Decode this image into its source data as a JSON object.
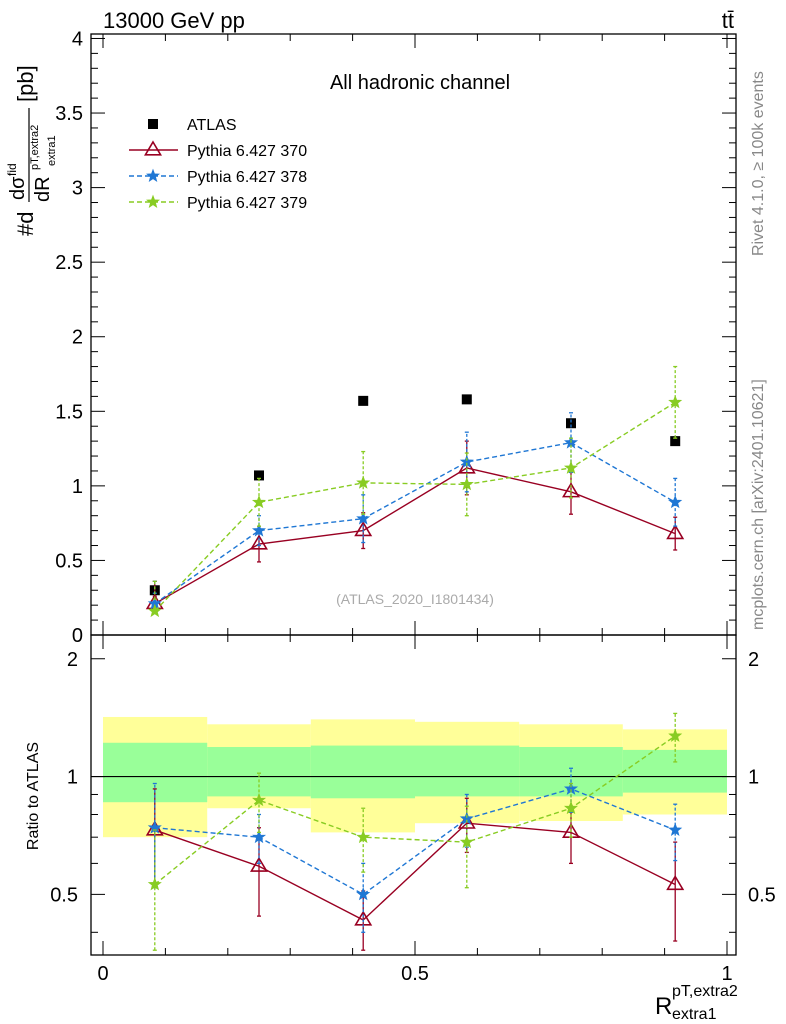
{
  "header": {
    "left_label": "13000 GeV pp",
    "right_label": "tt̄"
  },
  "side_labels": {
    "rivet": "Rivet 4.1.0, ≥ 100k events",
    "mcplots": "mcplots.cern.ch [arXiv:2401.10621]"
  },
  "chart_data": [
    {
      "type": "scatter",
      "panel": "main",
      "title": "All hadronic channel",
      "analysis_label": "(ATLAS_2020_I1801434)",
      "ylabel": "#d dσ^fid / dR^pT,extra2_extra1 [pb]",
      "ylabel_parts": {
        "prefix": "#d",
        "num": "dσ",
        "num_sup": "fid",
        "den": "dR",
        "den_sup": "pT,extra2",
        "den_sub": "extra1",
        "unit": "[pb]"
      },
      "xlim": [
        0,
        1
      ],
      "ylim": [
        0,
        4.03
      ],
      "x_ticks": [
        "0",
        "0.5",
        "1"
      ],
      "y_ticks": [
        "0",
        "0.5",
        "1",
        "1.5",
        "2",
        "2.5",
        "3",
        "3.5",
        "4"
      ],
      "legend_position": "top-left",
      "series": [
        {
          "name": "ATLAS",
          "color": "#000000",
          "marker": "square",
          "line": "none",
          "x": [
            0.083,
            0.25,
            0.417,
            0.583,
            0.75,
            0.917
          ],
          "y": [
            0.3,
            1.07,
            1.57,
            1.58,
            1.42,
            1.3
          ],
          "err": [
            0.0,
            0.0,
            0.0,
            0.0,
            0.0,
            0.0
          ]
        },
        {
          "name": "Pythia 6.427 370",
          "color": "#990022",
          "marker": "open-triangle",
          "line": "solid",
          "x": [
            0.083,
            0.25,
            0.417,
            0.583,
            0.75,
            0.917
          ],
          "y": [
            0.21,
            0.61,
            0.7,
            1.12,
            0.96,
            0.68
          ],
          "err": [
            0.05,
            0.12,
            0.12,
            0.18,
            0.15,
            0.11
          ]
        },
        {
          "name": "Pythia 6.427 378",
          "color": "#1f77d4",
          "marker": "star",
          "line": "dashed",
          "x": [
            0.083,
            0.25,
            0.417,
            0.583,
            0.75,
            0.917
          ],
          "y": [
            0.21,
            0.7,
            0.78,
            1.16,
            1.29,
            0.89
          ],
          "err": [
            0.07,
            0.1,
            0.16,
            0.2,
            0.2,
            0.16
          ]
        },
        {
          "name": "Pythia 6.427 379",
          "color": "#88cc22",
          "marker": "star",
          "line": "dashed",
          "x": [
            0.083,
            0.25,
            0.417,
            0.583,
            0.75,
            0.917
          ],
          "y": [
            0.16,
            0.89,
            1.02,
            1.01,
            1.12,
            1.56
          ],
          "err": [
            0.08,
            0.16,
            0.21,
            0.21,
            0.2,
            0.24
          ]
        }
      ]
    },
    {
      "type": "scatter",
      "panel": "ratio",
      "ylabel": "Ratio to ATLAS",
      "xlabel": "R",
      "xlabel_sup": "pT,extra2",
      "xlabel_sub": "extra1",
      "xlim": [
        0,
        1
      ],
      "ylim": [
        0.35,
        2.3
      ],
      "x_ticks": [
        "0",
        "0.5",
        "1"
      ],
      "y_ticks": [
        "0.5",
        "1",
        "2"
      ],
      "bin_edges": [
        0,
        0.167,
        0.333,
        0.5,
        0.667,
        0.833,
        1.0
      ],
      "bands": {
        "outer_color": "#ffff99",
        "inner_color": "#99ff99",
        "outer": [
          [
            0.7,
            1.42
          ],
          [
            0.83,
            1.36
          ],
          [
            0.72,
            1.4
          ],
          [
            0.76,
            1.38
          ],
          [
            0.77,
            1.36
          ],
          [
            0.8,
            1.32
          ]
        ],
        "inner": [
          [
            0.86,
            1.22
          ],
          [
            0.89,
            1.19
          ],
          [
            0.88,
            1.2
          ],
          [
            0.89,
            1.2
          ],
          [
            0.89,
            1.19
          ],
          [
            0.91,
            1.17
          ]
        ]
      },
      "series": [
        {
          "name": "Pythia 6.427 370",
          "color": "#990022",
          "marker": "open-triangle",
          "line": "solid",
          "x": [
            0.083,
            0.25,
            0.417,
            0.583,
            0.75,
            0.917
          ],
          "y": [
            0.73,
            0.59,
            0.43,
            0.76,
            0.72,
            0.53
          ],
          "err": [
            0.2,
            0.15,
            0.08,
            0.12,
            0.12,
            0.15
          ]
        },
        {
          "name": "Pythia 6.427 378",
          "color": "#1f77d4",
          "marker": "star",
          "line": "dashed",
          "x": [
            0.083,
            0.25,
            0.417,
            0.583,
            0.75,
            0.917
          ],
          "y": [
            0.74,
            0.7,
            0.5,
            0.78,
            0.93,
            0.73
          ],
          "err": [
            0.22,
            0.1,
            0.1,
            0.12,
            0.12,
            0.12
          ]
        },
        {
          "name": "Pythia 6.427 379",
          "color": "#88cc22",
          "marker": "star",
          "line": "dashed",
          "x": [
            0.083,
            0.25,
            0.417,
            0.583,
            0.75,
            0.917
          ],
          "y": [
            0.53,
            0.87,
            0.7,
            0.68,
            0.83,
            1.27
          ],
          "err": [
            0.2,
            0.15,
            0.13,
            0.16,
            0.13,
            0.18
          ]
        }
      ]
    }
  ]
}
